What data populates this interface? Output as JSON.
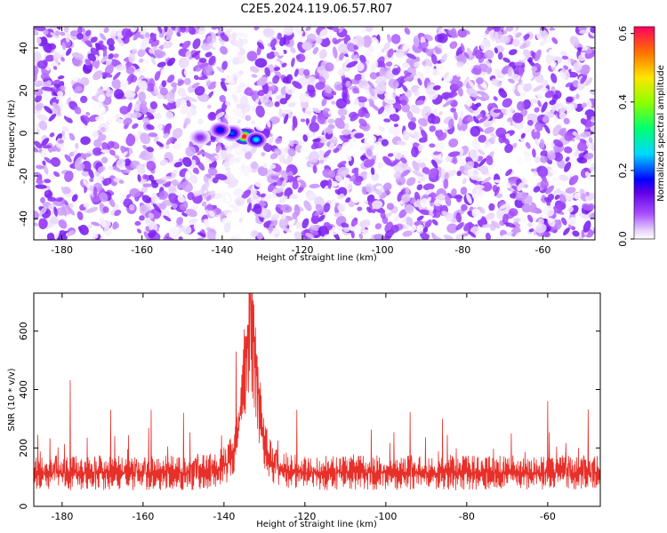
{
  "title": "C2E5.2024.119.06.57.R07",
  "chart_data": [
    {
      "type": "heatmap",
      "xlabel": "Height of straight line (km)",
      "ylabel": "Frequency (Hz)",
      "xlim": [
        -187,
        -47
      ],
      "ylim": [
        -50,
        50
      ],
      "x_ticks": [
        -180,
        -160,
        -140,
        -120,
        -100,
        -80,
        -60
      ],
      "y_ticks": [
        -40,
        -20,
        0,
        20,
        40
      ],
      "colorbar": {
        "label": "Normalized spectral amplitude",
        "range": [
          0,
          0.62
        ],
        "ticks": [
          "0.0",
          "0.2",
          "0.4",
          "0.6"
        ]
      },
      "features": [
        {
          "x": -134.5,
          "y": -1.5,
          "amplitude": 0.6
        },
        {
          "x": -137.5,
          "y": 0,
          "amplitude": 0.2
        },
        {
          "x": -131.5,
          "y": -3,
          "amplitude": 0.25
        },
        {
          "x": -140.5,
          "y": 1.5,
          "amplitude": 0.18
        },
        {
          "x": -145.5,
          "y": -2,
          "amplitude": 0.1
        }
      ],
      "background_amplitude_range": [
        0.0,
        0.12
      ],
      "gap_x_range": [
        -139,
        -134
      ]
    },
    {
      "type": "line",
      "xlabel": "Height of straight line (km)",
      "ylabel": "SNR (10 * v/v)",
      "xlim": [
        -187,
        -47
      ],
      "ylim": [
        0,
        730
      ],
      "x_ticks": [
        -180,
        -160,
        -140,
        -120,
        -100,
        -80,
        -60
      ],
      "y_ticks": [
        0,
        200,
        400,
        600
      ],
      "series": [
        {
          "color": "#e8302a",
          "baseline_mean": 115,
          "peak": {
            "x": -133.5,
            "y": 728
          },
          "notable_spikes": [
            {
              "x": -186,
              "y": 245
            },
            {
              "x": -178,
              "y": 432
            },
            {
              "x": -168,
              "y": 330
            },
            {
              "x": -158,
              "y": 330
            },
            {
              "x": -150,
              "y": 320
            },
            {
              "x": -137,
              "y": 530
            },
            {
              "x": -122,
              "y": 330
            },
            {
              "x": -94,
              "y": 322
            },
            {
              "x": -86,
              "y": 300
            },
            {
              "x": -69,
              "y": 250
            },
            {
              "x": -60,
              "y": 360
            },
            {
              "x": -50,
              "y": 332
            }
          ]
        }
      ]
    }
  ]
}
